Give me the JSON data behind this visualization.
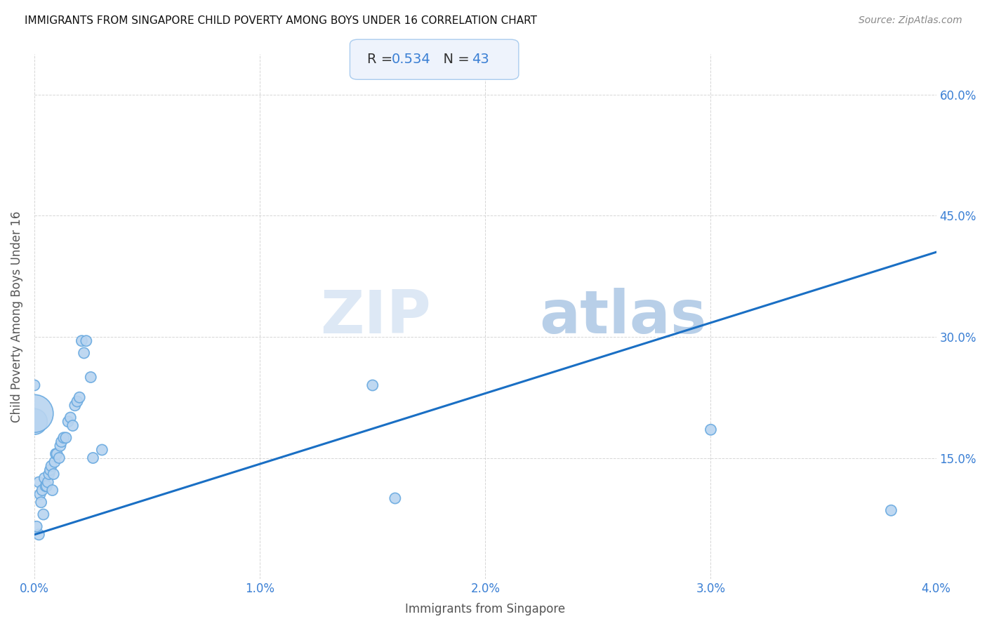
{
  "title": "IMMIGRANTS FROM SINGAPORE CHILD POVERTY AMONG BOYS UNDER 16 CORRELATION CHART",
  "source": "Source: ZipAtlas.com",
  "xlabel": "Immigrants from Singapore",
  "ylabel": "Child Poverty Among Boys Under 16",
  "R": 0.534,
  "N": 43,
  "x_min": 0.0,
  "x_max": 0.04,
  "y_min": 0.0,
  "y_max": 0.65,
  "x_ticks": [
    0.0,
    0.01,
    0.02,
    0.03,
    0.04
  ],
  "x_tick_labels": [
    "0.0%",
    "1.0%",
    "2.0%",
    "3.0%",
    "4.0%"
  ],
  "y_tick_positions": [
    0.15,
    0.3,
    0.45,
    0.6
  ],
  "y_tick_labels": [
    "15.0%",
    "30.0%",
    "45.0%",
    "60.0%"
  ],
  "scatter_x": [
    0.0002,
    0.00025,
    0.0003,
    0.00035,
    0.0004,
    0.00045,
    0.0005,
    0.00055,
    0.0006,
    0.00065,
    0.0007,
    0.00075,
    0.0008,
    0.00085,
    0.0009,
    0.00095,
    0.001,
    0.0011,
    0.00115,
    0.0012,
    0.0013,
    0.0014,
    0.0015,
    0.0016,
    0.0017,
    0.0018,
    0.0019,
    0.002,
    0.0021,
    0.0022,
    0.0023,
    0.0025,
    0.0026,
    0.003,
    0.0002,
    0.0001,
    0.015,
    0.016,
    0.03,
    0.038,
    0.0,
    0.0,
    0.0
  ],
  "scatter_y": [
    0.12,
    0.105,
    0.095,
    0.11,
    0.08,
    0.125,
    0.115,
    0.115,
    0.12,
    0.13,
    0.135,
    0.14,
    0.11,
    0.13,
    0.145,
    0.155,
    0.155,
    0.15,
    0.165,
    0.17,
    0.175,
    0.175,
    0.195,
    0.2,
    0.19,
    0.215,
    0.22,
    0.225,
    0.295,
    0.28,
    0.295,
    0.25,
    0.15,
    0.16,
    0.055,
    0.065,
    0.24,
    0.1,
    0.185,
    0.085,
    0.195,
    0.205,
    0.24
  ],
  "scatter_sizes": [
    120,
    120,
    120,
    120,
    120,
    120,
    120,
    120,
    120,
    120,
    120,
    120,
    120,
    120,
    120,
    120,
    120,
    120,
    120,
    120,
    120,
    120,
    120,
    120,
    120,
    120,
    120,
    120,
    120,
    120,
    120,
    120,
    120,
    120,
    120,
    120,
    120,
    120,
    120,
    120,
    700,
    1500,
    120
  ],
  "regression_x0": 0.0,
  "regression_y0": 0.055,
  "regression_x1": 0.04,
  "regression_y1": 0.405,
  "dot_color": "#b8d4f0",
  "dot_edge_color": "#6aaae0",
  "line_color": "#1a6fc4",
  "grid_color": "#cccccc",
  "annotation_box_facecolor": "#eef3fc",
  "annotation_box_edgecolor": "#aaccee",
  "r_value_color": "#3a7fd4",
  "n_value_color": "#3a7fd4",
  "watermark_zip_color": "#dde8f5",
  "watermark_atlas_color": "#b8cfe8",
  "title_color": "#111111",
  "axis_label_color": "#555555",
  "tick_label_color": "#3a7fd4",
  "source_color": "#888888"
}
